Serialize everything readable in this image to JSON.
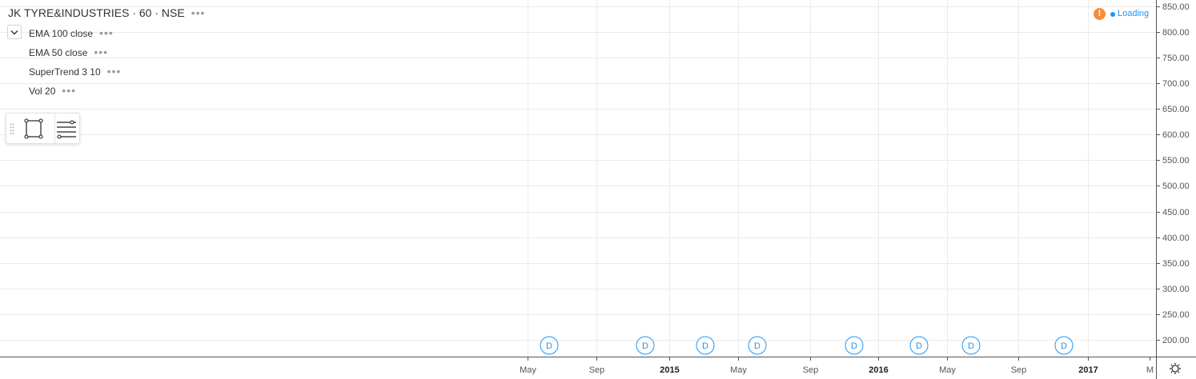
{
  "legend": {
    "title": "JK TYRE&INDUSTRIES · 60 · NSE",
    "more": "•••",
    "indicators": [
      {
        "label": "EMA 100 close",
        "more": "•••"
      },
      {
        "label": "EMA 50 close",
        "more": "•••"
      },
      {
        "label": "SuperTrend 3 10",
        "more": "•••"
      },
      {
        "label": "Vol 20",
        "more": "•••"
      }
    ]
  },
  "toolbar": {
    "tools": [
      "rectangle-icon",
      "object-tree-icon"
    ]
  },
  "status": {
    "warning": "!",
    "loading": "Loading"
  },
  "price_axis": {
    "labels": [
      "850.00",
      "800.00",
      "750.00",
      "700.00",
      "650.00",
      "600.00",
      "550.00",
      "500.00",
      "450.00",
      "400.00",
      "350.00",
      "300.00",
      "250.00",
      "200.00"
    ]
  },
  "time_axis": {
    "labels": [
      {
        "text": "May",
        "bold": false
      },
      {
        "text": "Sep",
        "bold": false
      },
      {
        "text": "2015",
        "bold": true
      },
      {
        "text": "May",
        "bold": false
      },
      {
        "text": "Sep",
        "bold": false
      },
      {
        "text": "2016",
        "bold": true
      },
      {
        "text": "May",
        "bold": false
      },
      {
        "text": "Sep",
        "bold": false
      },
      {
        "text": "2017",
        "bold": true
      },
      {
        "text": "M",
        "bold": false
      }
    ]
  },
  "dividend_markers": {
    "label": "D",
    "count": 8
  },
  "colors": {
    "grid": "#ebebeb",
    "axis_text": "#555555",
    "marker": "#2196f3",
    "warning": "#f68d3b"
  }
}
